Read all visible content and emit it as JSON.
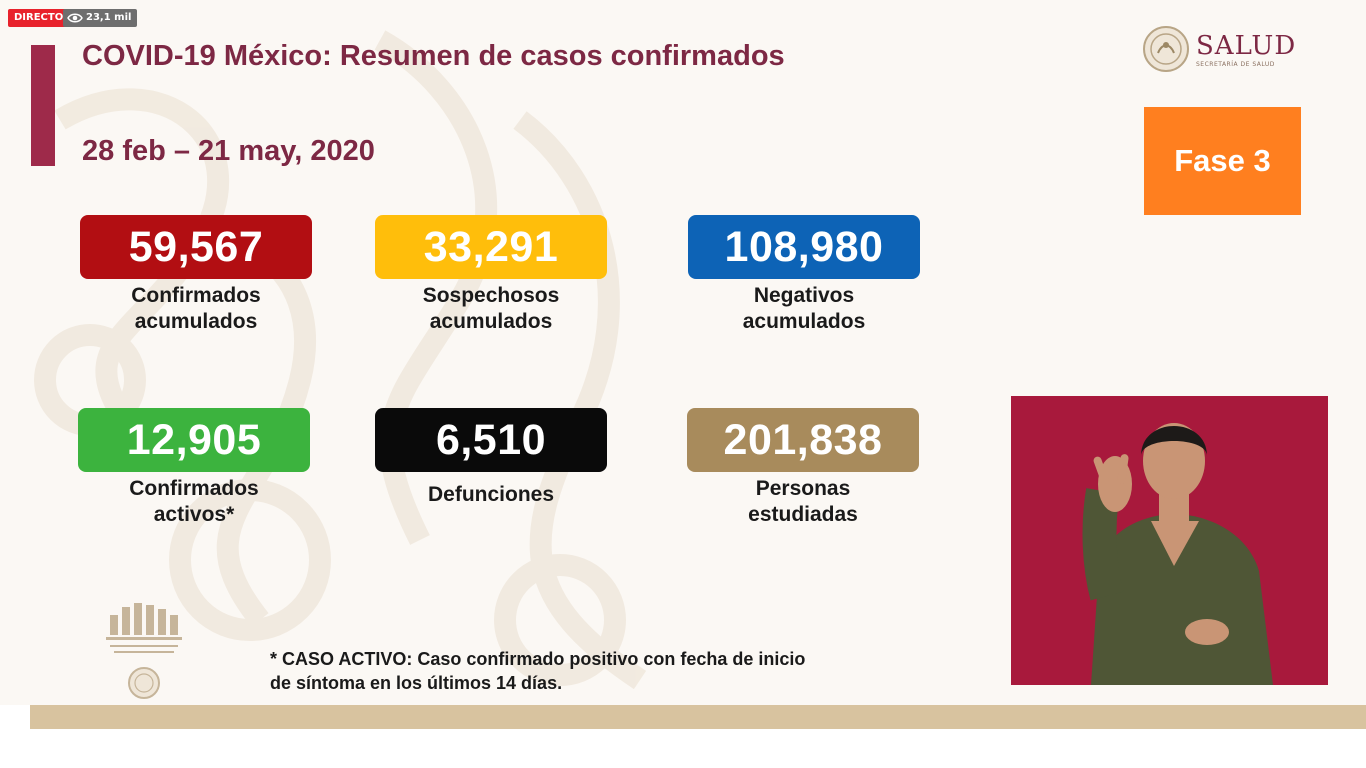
{
  "stream": {
    "live_label": "DIRECTO",
    "viewers": "23,1 mil"
  },
  "header": {
    "title": "COVID-19 México: Resumen de casos confirmados",
    "date_range": "28 feb – 21 may, 2020"
  },
  "logo": {
    "name": "SALUD",
    "subtitle": "SECRETARÍA DE SALUD"
  },
  "phase": "Fase 3",
  "stats": [
    {
      "value": "59,567",
      "label_line1": "Confirmados",
      "label_line2": "acumulados",
      "color": "#b20e12"
    },
    {
      "value": "33,291",
      "label_line1": "Sospechosos",
      "label_line2": "acumulados",
      "color": "#ffbe0b"
    },
    {
      "value": "108,980",
      "label_line1": "Negativos",
      "label_line2": "acumulados",
      "color": "#0d63b6"
    },
    {
      "value": "12,905",
      "label_line1": "Confirmados",
      "label_line2": "activos*",
      "color": "#3cb33e"
    },
    {
      "value": "6,510",
      "label_line1": "Defunciones",
      "label_line2": "",
      "color": "#0a0a0a"
    },
    {
      "value": "201,838",
      "label_line1": "Personas",
      "label_line2": "estudiadas",
      "color": "#a88b5c"
    }
  ],
  "footnote": {
    "line1": "* CASO ACTIVO: Caso confirmado positivo con fecha de inicio",
    "line2": "de síntoma en los últimos 14 días."
  },
  "colors": {
    "title": "#7d2844",
    "accent_bar": "#9e2a4a",
    "phase": "#ff7f1f",
    "band": "#d8c39f",
    "interpreter_bg": "#a8193c"
  },
  "icons": {
    "viewers": "eye-icon",
    "logo": "national-seal-icon"
  }
}
